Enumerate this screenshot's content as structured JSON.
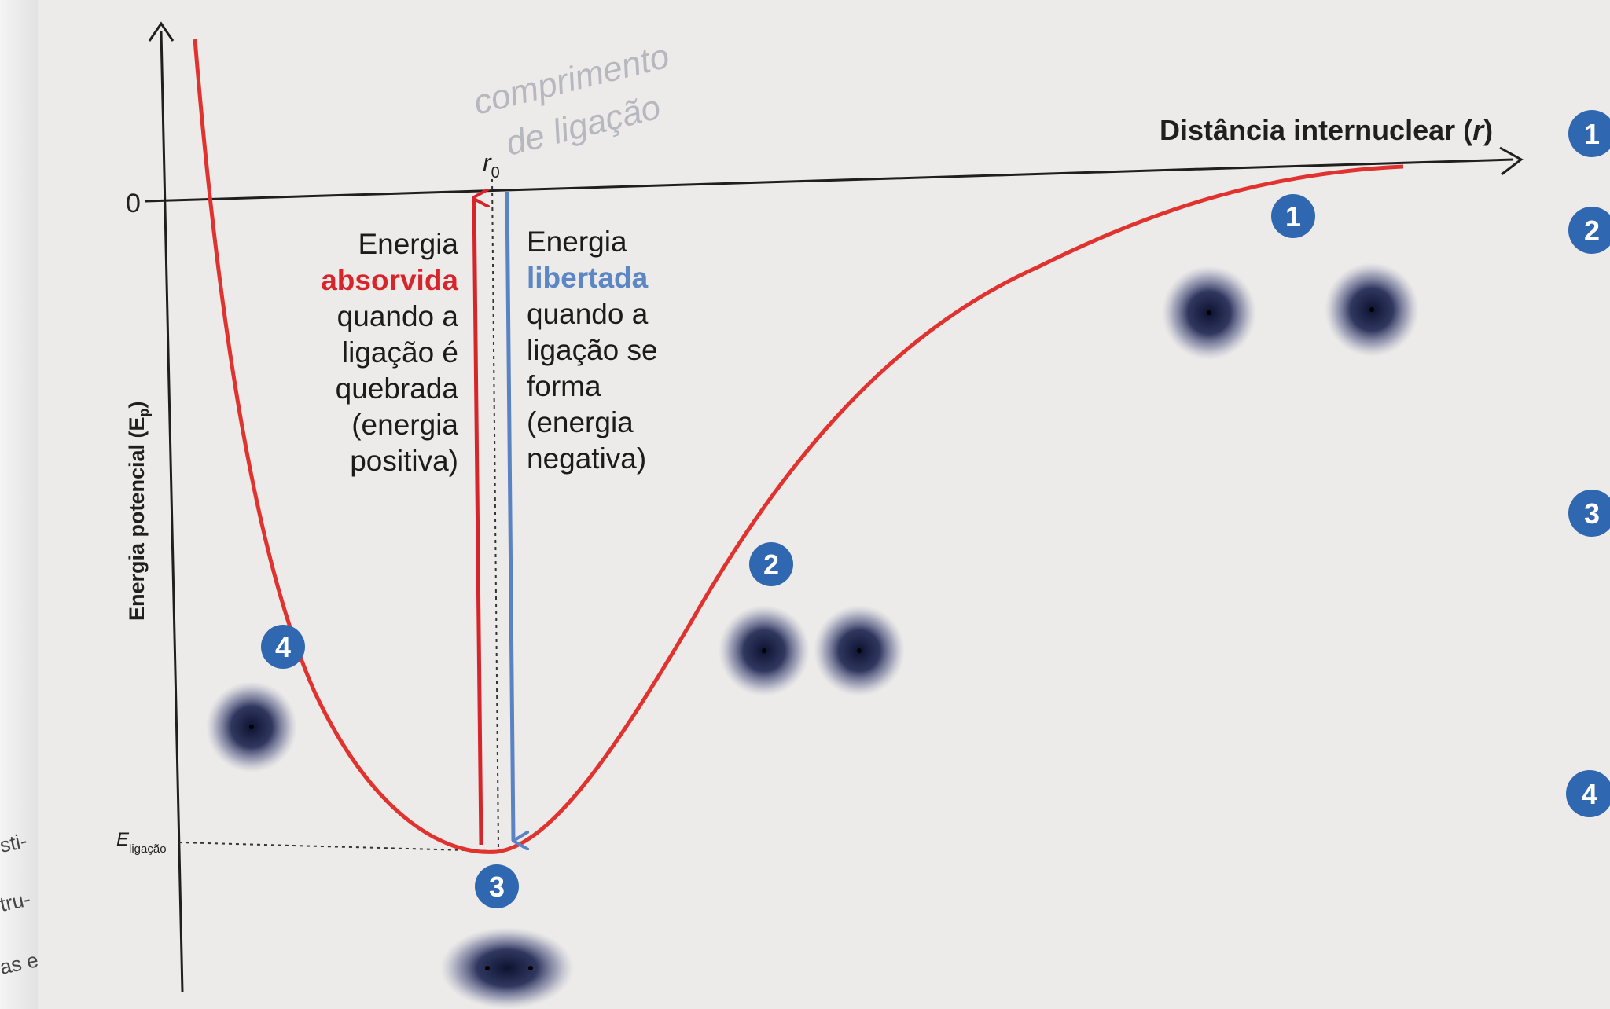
{
  "diagram": {
    "x_axis_label": "Distância internuclear (",
    "x_axis_symbol": "r",
    "x_axis_close": ")",
    "y_axis_label": "Energia potencial (E",
    "y_axis_sub": "p",
    "y_axis_close": ")",
    "zero_label": "0",
    "r0_label": "r",
    "r0_sub": "0",
    "e_ligacao_label": "E",
    "e_ligacao_sub": "ligação",
    "handwritten_note": [
      "comprimento",
      "de ligação"
    ],
    "absorbed_text": [
      "Energia",
      "absorvida",
      "quando a",
      "ligação é",
      "quebrada",
      "(energia",
      "positiva)"
    ],
    "released_text": [
      "Energia",
      "libertada",
      "quando a",
      "ligação se",
      "forma",
      "(energia",
      "negativa)"
    ],
    "markers": [
      "1",
      "2",
      "3",
      "4"
    ],
    "side_markers": [
      "1",
      "2",
      "3",
      "4"
    ],
    "margin_fragments": [
      "sti-",
      "tru-",
      "as e"
    ],
    "colors": {
      "curve": "#e0332f",
      "absorbed_arrow": "#d7262b",
      "released_arrow": "#5b82c3",
      "marker": "#2f67b0",
      "axis": "#1f1f1f",
      "atom": "#141a3c"
    }
  }
}
